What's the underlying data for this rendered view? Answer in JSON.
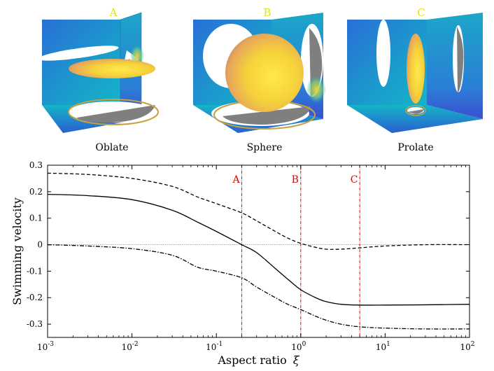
{
  "panels": [
    {
      "id": "oblate",
      "letter": "A",
      "caption": "Oblate"
    },
    {
      "id": "sphere",
      "letter": "B",
      "caption": "Sphere"
    },
    {
      "id": "prolate",
      "letter": "C",
      "caption": "Prolate"
    }
  ],
  "colors": {
    "surface_low": "#2a6fd6",
    "surface_mid": "#14b4c8",
    "surface_high": "#f5d23a",
    "marker_red": "#e00000",
    "label_yellow": "#e6e600",
    "shadow_gray": "#7f7f7f"
  },
  "chart_data": {
    "type": "line",
    "xscale": "log",
    "xlim": [
      0.001,
      100
    ],
    "ylim": [
      -0.35,
      0.3
    ],
    "xlabel": "Aspect ratio",
    "xlabel_symbol": "ξ",
    "ylabel": "Swimming velocity",
    "x_ticks": [
      {
        "value": 0.001,
        "base": "10",
        "exp": "-3"
      },
      {
        "value": 0.01,
        "base": "10",
        "exp": "-2"
      },
      {
        "value": 0.1,
        "base": "10",
        "exp": "-1"
      },
      {
        "value": 1,
        "base": "10",
        "exp": "0"
      },
      {
        "value": 10,
        "base": "10",
        "exp": "1"
      },
      {
        "value": 100,
        "base": "10",
        "exp": "2"
      }
    ],
    "y_ticks": [
      {
        "value": 0.3,
        "label": "0.3"
      },
      {
        "value": 0.2,
        "label": "0.2"
      },
      {
        "value": 0.1,
        "label": "0.1"
      },
      {
        "value": 0,
        "label": "0"
      },
      {
        "value": -0.1,
        "label": "-0.1"
      },
      {
        "value": -0.2,
        "label": "-0.2"
      },
      {
        "value": -0.3,
        "label": "-0.3"
      }
    ],
    "reference_line": {
      "y": 0,
      "style": "dotted"
    },
    "vertical_markers": [
      {
        "label": "A",
        "x": 0.2
      },
      {
        "label": "B",
        "x": 1
      },
      {
        "label": "C",
        "x": 5
      }
    ],
    "series": [
      {
        "name": "dashed",
        "style": "dashed",
        "x": [
          0.001,
          0.003,
          0.01,
          0.03,
          0.06,
          0.1,
          0.2,
          0.3,
          0.5,
          0.7,
          1,
          1.5,
          2,
          3,
          5,
          10,
          30,
          100
        ],
        "y": [
          0.27,
          0.265,
          0.25,
          0.22,
          0.18,
          0.155,
          0.12,
          0.09,
          0.05,
          0.025,
          0.005,
          -0.01,
          -0.017,
          -0.017,
          -0.012,
          -0.005,
          0.0,
          0.0
        ]
      },
      {
        "name": "solid",
        "style": "solid",
        "x": [
          0.001,
          0.003,
          0.01,
          0.03,
          0.06,
          0.1,
          0.2,
          0.3,
          0.5,
          0.7,
          1,
          1.5,
          2,
          3,
          5,
          10,
          30,
          100
        ],
        "y": [
          0.19,
          0.185,
          0.17,
          0.13,
          0.085,
          0.05,
          0.0,
          -0.03,
          -0.09,
          -0.13,
          -0.17,
          -0.2,
          -0.215,
          -0.225,
          -0.228,
          -0.228,
          -0.227,
          -0.225
        ]
      },
      {
        "name": "dash-dot",
        "style": "dashdot",
        "x": [
          0.001,
          0.003,
          0.01,
          0.03,
          0.06,
          0.1,
          0.2,
          0.3,
          0.5,
          0.7,
          1,
          1.5,
          2,
          3,
          5,
          10,
          30,
          100
        ],
        "y": [
          0.0,
          -0.005,
          -0.015,
          -0.04,
          -0.085,
          -0.1,
          -0.125,
          -0.16,
          -0.2,
          -0.225,
          -0.245,
          -0.27,
          -0.285,
          -0.3,
          -0.31,
          -0.315,
          -0.318,
          -0.318
        ]
      }
    ]
  }
}
